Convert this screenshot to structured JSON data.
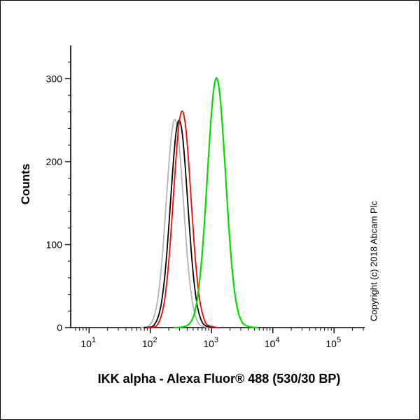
{
  "figure": {
    "copyright": "Copyright (c) 2018 Abcam Plc",
    "background": "#ffffff"
  },
  "chart_data": {
    "type": "line",
    "title": "",
    "xlabel": "IKK alpha - Alexa Fluor® 488 (530/30 BP)",
    "ylabel": "Counts",
    "x_scale": "log10",
    "xlim_log10": [
      0.7,
      5.5
    ],
    "ylim": [
      0,
      340
    ],
    "y_ticks": [
      0,
      100,
      200,
      300
    ],
    "y_minor_step": 20,
    "x_ticks_exponents": [
      1,
      2,
      3,
      4,
      5
    ],
    "axis_color": "#000000",
    "grid": "off",
    "legend": "none",
    "series": [
      {
        "name": "gray",
        "color": "#b3b3b3",
        "stroke_width": 1.8,
        "peak_x": 250,
        "peak_counts": 251,
        "points": [
          [
            1.85,
            0
          ],
          [
            1.95,
            1
          ],
          [
            2.0,
            4
          ],
          [
            2.05,
            11
          ],
          [
            2.1,
            25
          ],
          [
            2.15,
            51
          ],
          [
            2.2,
            90
          ],
          [
            2.25,
            141
          ],
          [
            2.3,
            194
          ],
          [
            2.35,
            235
          ],
          [
            2.4,
            251
          ],
          [
            2.45,
            235
          ],
          [
            2.5,
            194
          ],
          [
            2.55,
            141
          ],
          [
            2.6,
            90
          ],
          [
            2.65,
            51
          ],
          [
            2.7,
            25
          ],
          [
            2.75,
            11
          ],
          [
            2.8,
            4
          ],
          [
            2.88,
            1
          ],
          [
            3.0,
            0
          ]
        ]
      },
      {
        "name": "black",
        "color": "#000000",
        "stroke_width": 1.8,
        "peak_x": 295,
        "peak_counts": 250,
        "points": [
          [
            1.9,
            0
          ],
          [
            2.02,
            1
          ],
          [
            2.07,
            4
          ],
          [
            2.12,
            11
          ],
          [
            2.17,
            25
          ],
          [
            2.22,
            51
          ],
          [
            2.27,
            90
          ],
          [
            2.32,
            141
          ],
          [
            2.37,
            194
          ],
          [
            2.42,
            235
          ],
          [
            2.47,
            250
          ],
          [
            2.52,
            235
          ],
          [
            2.57,
            194
          ],
          [
            2.62,
            141
          ],
          [
            2.67,
            90
          ],
          [
            2.72,
            51
          ],
          [
            2.77,
            25
          ],
          [
            2.82,
            11
          ],
          [
            2.87,
            4
          ],
          [
            2.95,
            1
          ],
          [
            3.05,
            0
          ]
        ]
      },
      {
        "name": "red",
        "color": "#ff0000",
        "stroke_width": 1.8,
        "peak_x": 331,
        "peak_counts": 261,
        "points": [
          [
            1.95,
            0
          ],
          [
            2.07,
            1
          ],
          [
            2.12,
            4
          ],
          [
            2.17,
            12
          ],
          [
            2.22,
            27
          ],
          [
            2.27,
            55
          ],
          [
            2.32,
            97
          ],
          [
            2.37,
            150
          ],
          [
            2.42,
            205
          ],
          [
            2.47,
            246
          ],
          [
            2.52,
            261
          ],
          [
            2.57,
            246
          ],
          [
            2.62,
            205
          ],
          [
            2.67,
            150
          ],
          [
            2.72,
            97
          ],
          [
            2.77,
            55
          ],
          [
            2.82,
            27
          ],
          [
            2.87,
            12
          ],
          [
            2.92,
            4
          ],
          [
            3.02,
            1
          ],
          [
            3.12,
            0
          ]
        ]
      },
      {
        "name": "green",
        "color": "#00dd00",
        "stroke_width": 2.2,
        "peak_x": 1202,
        "peak_counts": 301,
        "points": [
          [
            2.4,
            0
          ],
          [
            2.55,
            1
          ],
          [
            2.63,
            4
          ],
          [
            2.68,
            9
          ],
          [
            2.73,
            20
          ],
          [
            2.78,
            41
          ],
          [
            2.83,
            75
          ],
          [
            2.88,
            123
          ],
          [
            2.93,
            182
          ],
          [
            2.98,
            240
          ],
          [
            3.03,
            284
          ],
          [
            3.08,
            301
          ],
          [
            3.13,
            284
          ],
          [
            3.18,
            240
          ],
          [
            3.23,
            182
          ],
          [
            3.28,
            123
          ],
          [
            3.33,
            75
          ],
          [
            3.38,
            41
          ],
          [
            3.43,
            20
          ],
          [
            3.48,
            9
          ],
          [
            3.53,
            4
          ],
          [
            3.62,
            1
          ],
          [
            3.75,
            0
          ]
        ]
      }
    ]
  }
}
